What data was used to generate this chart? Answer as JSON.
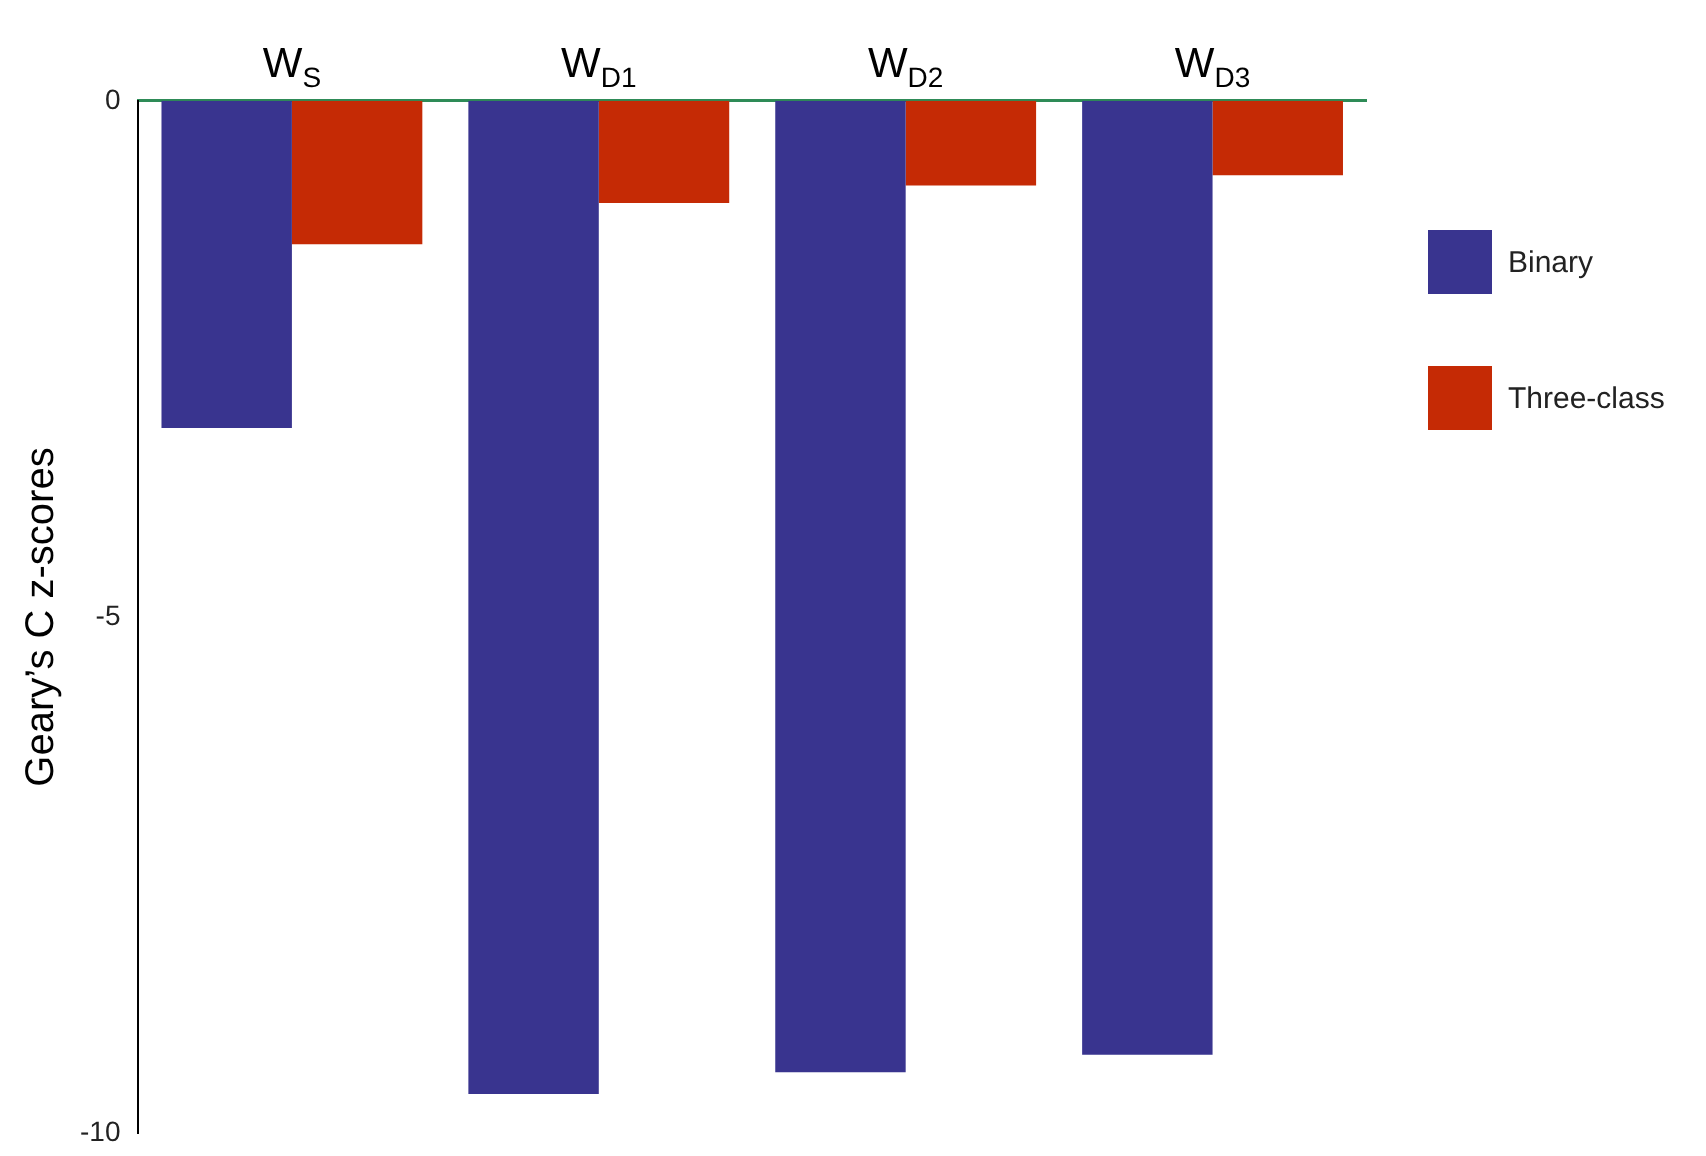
{
  "chart_data": {
    "type": "bar",
    "ylabel": "Geary’s C z-scores",
    "categories": [
      "W$_{S}$",
      "W$_{D1}$",
      "W$_{D2}$",
      "W$_{D3}$"
    ],
    "series": [
      {
        "name": "Binary",
        "color": "#39348f",
        "values": [
          -3.17,
          -9.62,
          -9.41,
          -9.24
        ]
      },
      {
        "name": "Three-class",
        "color": "#c52a05",
        "values": [
          -1.39,
          -0.99,
          -0.82,
          -0.72
        ]
      }
    ],
    "ylim": [
      -10,
      0
    ],
    "yticks": [
      -10,
      -5,
      0
    ],
    "grid": false,
    "legend": "right"
  }
}
